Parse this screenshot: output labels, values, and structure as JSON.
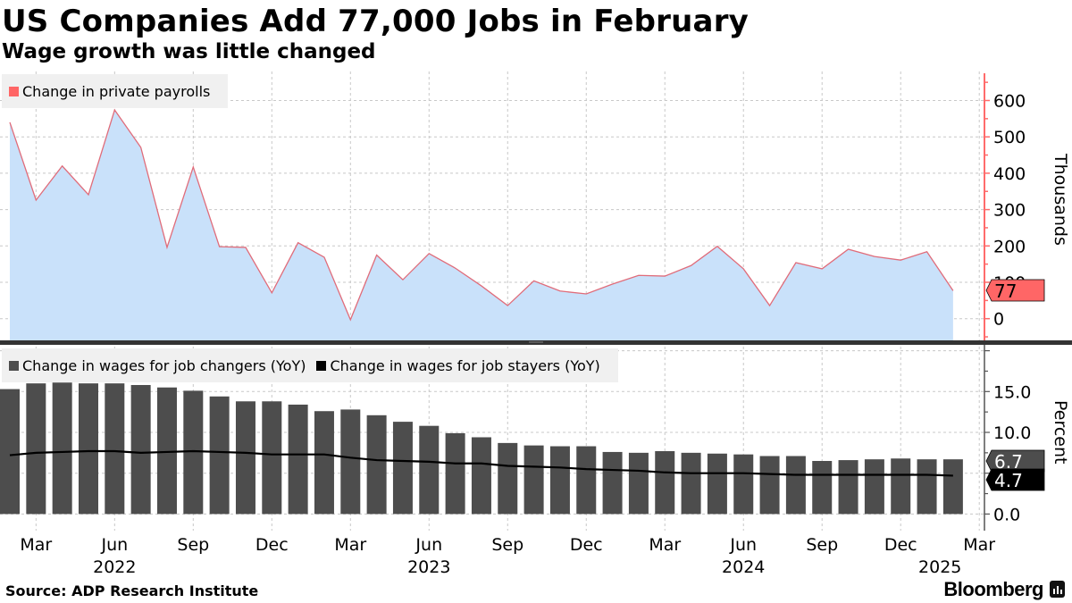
{
  "header": {
    "title": "US Companies Add 77,000 Jobs in February",
    "subtitle": "Wage growth was little changed"
  },
  "footer": {
    "source": "Source: ADP Research Institute",
    "brand": "Bloomberg"
  },
  "colors": {
    "payroll_line": "#e06c7a",
    "payroll_fill": "#c9e1fa",
    "payroll_axis": "#ff6b6b",
    "payroll_badge": "#ff6666",
    "changers_bar": "#4d4d4d",
    "stayers_line": "#000000",
    "legend_bg": "#f0f0f0"
  },
  "top_panel": {
    "legend": [
      {
        "label": "Change in private payrolls",
        "color": "#ff6666"
      }
    ],
    "axis_label": "Thousands",
    "ticks": [
      "600",
      "500",
      "400",
      "300",
      "200",
      "100",
      "0"
    ],
    "last_value_badge": "77"
  },
  "bottom_panel": {
    "legend": [
      {
        "label": "Change in wages for job changers (YoY)",
        "color": "#4d4d4d"
      },
      {
        "label": "Change in wages for job stayers (YoY)",
        "color": "#000000"
      }
    ],
    "axis_label": "Percent",
    "ticks": [
      "15.0",
      "10.0",
      "0.0"
    ],
    "last_value_badges": [
      "6.7",
      "4.7"
    ]
  },
  "x_axis": {
    "month_labels": [
      "Mar",
      "Jun",
      "Sep",
      "Dec",
      "Mar",
      "Jun",
      "Sep",
      "Dec",
      "Mar",
      "Jun",
      "Sep",
      "Dec",
      "Mar"
    ],
    "year_labels": [
      "2022",
      "2023",
      "2024",
      "2025"
    ]
  },
  "chart_data": [
    {
      "type": "area",
      "title": "US Companies Add 77,000 Jobs in February",
      "subtitle": "Wage growth was little changed",
      "xlabel": "",
      "ylabel": "Thousands",
      "ylim": [
        -60,
        660
      ],
      "grid": true,
      "legend_position": "top-left",
      "x": [
        "2022-02",
        "2022-03",
        "2022-04",
        "2022-05",
        "2022-06",
        "2022-07",
        "2022-08",
        "2022-09",
        "2022-10",
        "2022-11",
        "2022-12",
        "2023-01",
        "2023-02",
        "2023-03",
        "2023-04",
        "2023-05",
        "2023-06",
        "2023-07",
        "2023-08",
        "2023-09",
        "2023-10",
        "2023-11",
        "2023-12",
        "2024-01",
        "2024-02",
        "2024-03",
        "2024-04",
        "2024-05",
        "2024-06",
        "2024-07",
        "2024-08",
        "2024-09",
        "2024-10",
        "2024-11",
        "2024-12",
        "2025-01",
        "2025-02"
      ],
      "series": [
        {
          "name": "Change in private payrolls",
          "values": [
            540,
            326,
            420,
            341,
            574,
            471,
            196,
            417,
            198,
            196,
            71,
            209,
            169,
            -3,
            175,
            107,
            179,
            139,
            90,
            36,
            104,
            76,
            68,
            95,
            119,
            117,
            146,
            199,
            137,
            36,
            154,
            137,
            191,
            171,
            161,
            184,
            77
          ]
        }
      ],
      "annotations": [
        "77"
      ]
    },
    {
      "type": "bar",
      "xlabel": "",
      "ylabel": "Percent",
      "ylim": [
        -2.5,
        20
      ],
      "grid": true,
      "legend_position": "top-left",
      "x": [
        "2022-02",
        "2022-03",
        "2022-04",
        "2022-05",
        "2022-06",
        "2022-07",
        "2022-08",
        "2022-09",
        "2022-10",
        "2022-11",
        "2022-12",
        "2023-01",
        "2023-02",
        "2023-03",
        "2023-04",
        "2023-05",
        "2023-06",
        "2023-07",
        "2023-08",
        "2023-09",
        "2023-10",
        "2023-11",
        "2023-12",
        "2024-01",
        "2024-02",
        "2024-03",
        "2024-04",
        "2024-05",
        "2024-06",
        "2024-07",
        "2024-08",
        "2024-09",
        "2024-10",
        "2024-11",
        "2024-12",
        "2025-01",
        "2025-02"
      ],
      "series": [
        {
          "name": "Change in wages for job changers (YoY)",
          "type": "bar",
          "values": [
            15.3,
            16.0,
            16.1,
            16.0,
            16.0,
            15.8,
            15.5,
            15.1,
            14.4,
            13.8,
            13.8,
            13.4,
            12.6,
            12.8,
            12.1,
            11.3,
            10.8,
            9.9,
            9.4,
            8.7,
            8.4,
            8.3,
            8.3,
            7.6,
            7.5,
            7.7,
            7.5,
            7.4,
            7.3,
            7.1,
            7.1,
            6.5,
            6.6,
            6.7,
            6.8,
            6.7,
            6.7
          ]
        },
        {
          "name": "Change in wages for job stayers (YoY)",
          "type": "line",
          "values": [
            7.2,
            7.5,
            7.6,
            7.7,
            7.7,
            7.5,
            7.6,
            7.7,
            7.6,
            7.5,
            7.3,
            7.3,
            7.3,
            6.9,
            6.6,
            6.5,
            6.4,
            6.2,
            6.2,
            5.9,
            5.8,
            5.7,
            5.5,
            5.4,
            5.3,
            5.1,
            5.0,
            5.0,
            5.0,
            4.9,
            4.8,
            4.8,
            4.8,
            4.8,
            4.8,
            4.8,
            4.7
          ]
        }
      ],
      "annotations": [
        "6.7",
        "4.7"
      ]
    }
  ]
}
